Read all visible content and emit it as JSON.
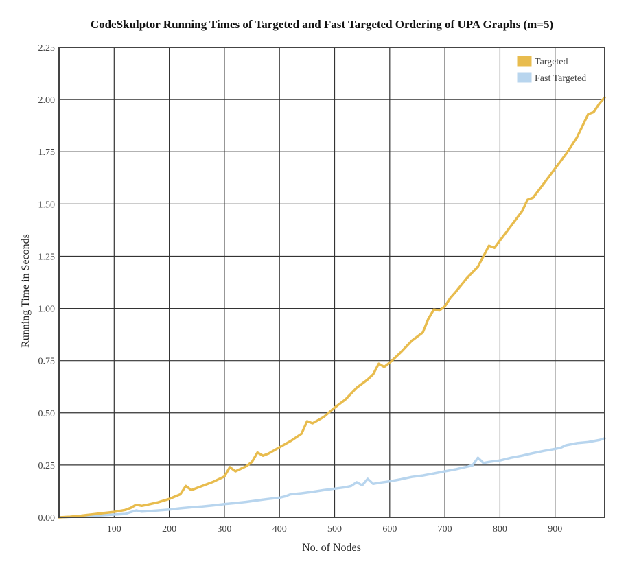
{
  "chart_data": {
    "type": "line",
    "title": "CodeSkulptor Running Times of Targeted and Fast Targeted Ordering of UPA Graphs (m=5)",
    "xlabel": "No. of Nodes",
    "ylabel": "Running Time in Seconds",
    "xlim": [
      0,
      990
    ],
    "ylim": [
      0,
      2.25
    ],
    "xticks": [
      100,
      200,
      300,
      400,
      500,
      600,
      700,
      800,
      900
    ],
    "xtick_labels": [
      "100",
      "200",
      "300",
      "400",
      "500",
      "600",
      "700",
      "800",
      "900"
    ],
    "yticks": [
      0,
      0.25,
      0.5,
      0.75,
      1.0,
      1.25,
      1.5,
      1.75,
      2.0,
      2.25
    ],
    "ytick_labels": [
      "0.00",
      "0.25",
      "0.50",
      "0.75",
      "1.00",
      "1.25",
      "1.50",
      "1.75",
      "2.00",
      "2.25"
    ],
    "grid": true,
    "legend_position": "top-right",
    "series": [
      {
        "name": "Targeted",
        "color": "#e8bc4e",
        "x": [
          0,
          20,
          40,
          60,
          80,
          100,
          120,
          130,
          140,
          150,
          160,
          180,
          200,
          220,
          230,
          240,
          260,
          280,
          300,
          310,
          320,
          340,
          350,
          360,
          370,
          380,
          400,
          420,
          440,
          450,
          460,
          480,
          500,
          520,
          540,
          560,
          570,
          580,
          590,
          600,
          620,
          640,
          660,
          670,
          680,
          690,
          700,
          710,
          720,
          740,
          760,
          780,
          790,
          800,
          820,
          840,
          850,
          860,
          880,
          900,
          920,
          940,
          960,
          970,
          980,
          990
        ],
        "values": [
          0.0,
          0.003,
          0.008,
          0.014,
          0.02,
          0.026,
          0.035,
          0.045,
          0.06,
          0.055,
          0.06,
          0.072,
          0.088,
          0.11,
          0.15,
          0.13,
          0.15,
          0.17,
          0.195,
          0.24,
          0.22,
          0.245,
          0.265,
          0.31,
          0.295,
          0.305,
          0.335,
          0.365,
          0.4,
          0.46,
          0.45,
          0.48,
          0.525,
          0.565,
          0.62,
          0.66,
          0.685,
          0.735,
          0.72,
          0.74,
          0.79,
          0.845,
          0.885,
          0.95,
          0.995,
          0.99,
          1.01,
          1.05,
          1.08,
          1.145,
          1.2,
          1.3,
          1.29,
          1.325,
          1.395,
          1.465,
          1.52,
          1.53,
          1.6,
          1.67,
          1.74,
          1.82,
          1.93,
          1.94,
          1.98,
          2.01
        ]
      },
      {
        "name": "Fast Targeted",
        "color": "#b8d5ee",
        "x": [
          0,
          20,
          40,
          60,
          80,
          100,
          120,
          130,
          140,
          150,
          160,
          180,
          200,
          220,
          240,
          260,
          280,
          300,
          320,
          340,
          360,
          380,
          400,
          410,
          420,
          440,
          460,
          480,
          500,
          520,
          530,
          540,
          550,
          560,
          570,
          580,
          600,
          620,
          640,
          660,
          680,
          700,
          720,
          740,
          750,
          760,
          770,
          780,
          800,
          820,
          840,
          860,
          880,
          900,
          910,
          920,
          940,
          960,
          980,
          990
        ],
        "values": [
          0.0,
          0.002,
          0.004,
          0.007,
          0.01,
          0.013,
          0.016,
          0.025,
          0.033,
          0.027,
          0.029,
          0.033,
          0.037,
          0.043,
          0.048,
          0.052,
          0.057,
          0.063,
          0.068,
          0.074,
          0.081,
          0.088,
          0.094,
          0.1,
          0.11,
          0.115,
          0.122,
          0.13,
          0.137,
          0.144,
          0.15,
          0.168,
          0.153,
          0.184,
          0.16,
          0.165,
          0.172,
          0.182,
          0.193,
          0.2,
          0.21,
          0.22,
          0.23,
          0.242,
          0.248,
          0.285,
          0.26,
          0.265,
          0.272,
          0.285,
          0.295,
          0.307,
          0.318,
          0.327,
          0.333,
          0.345,
          0.355,
          0.36,
          0.37,
          0.378
        ]
      }
    ]
  }
}
